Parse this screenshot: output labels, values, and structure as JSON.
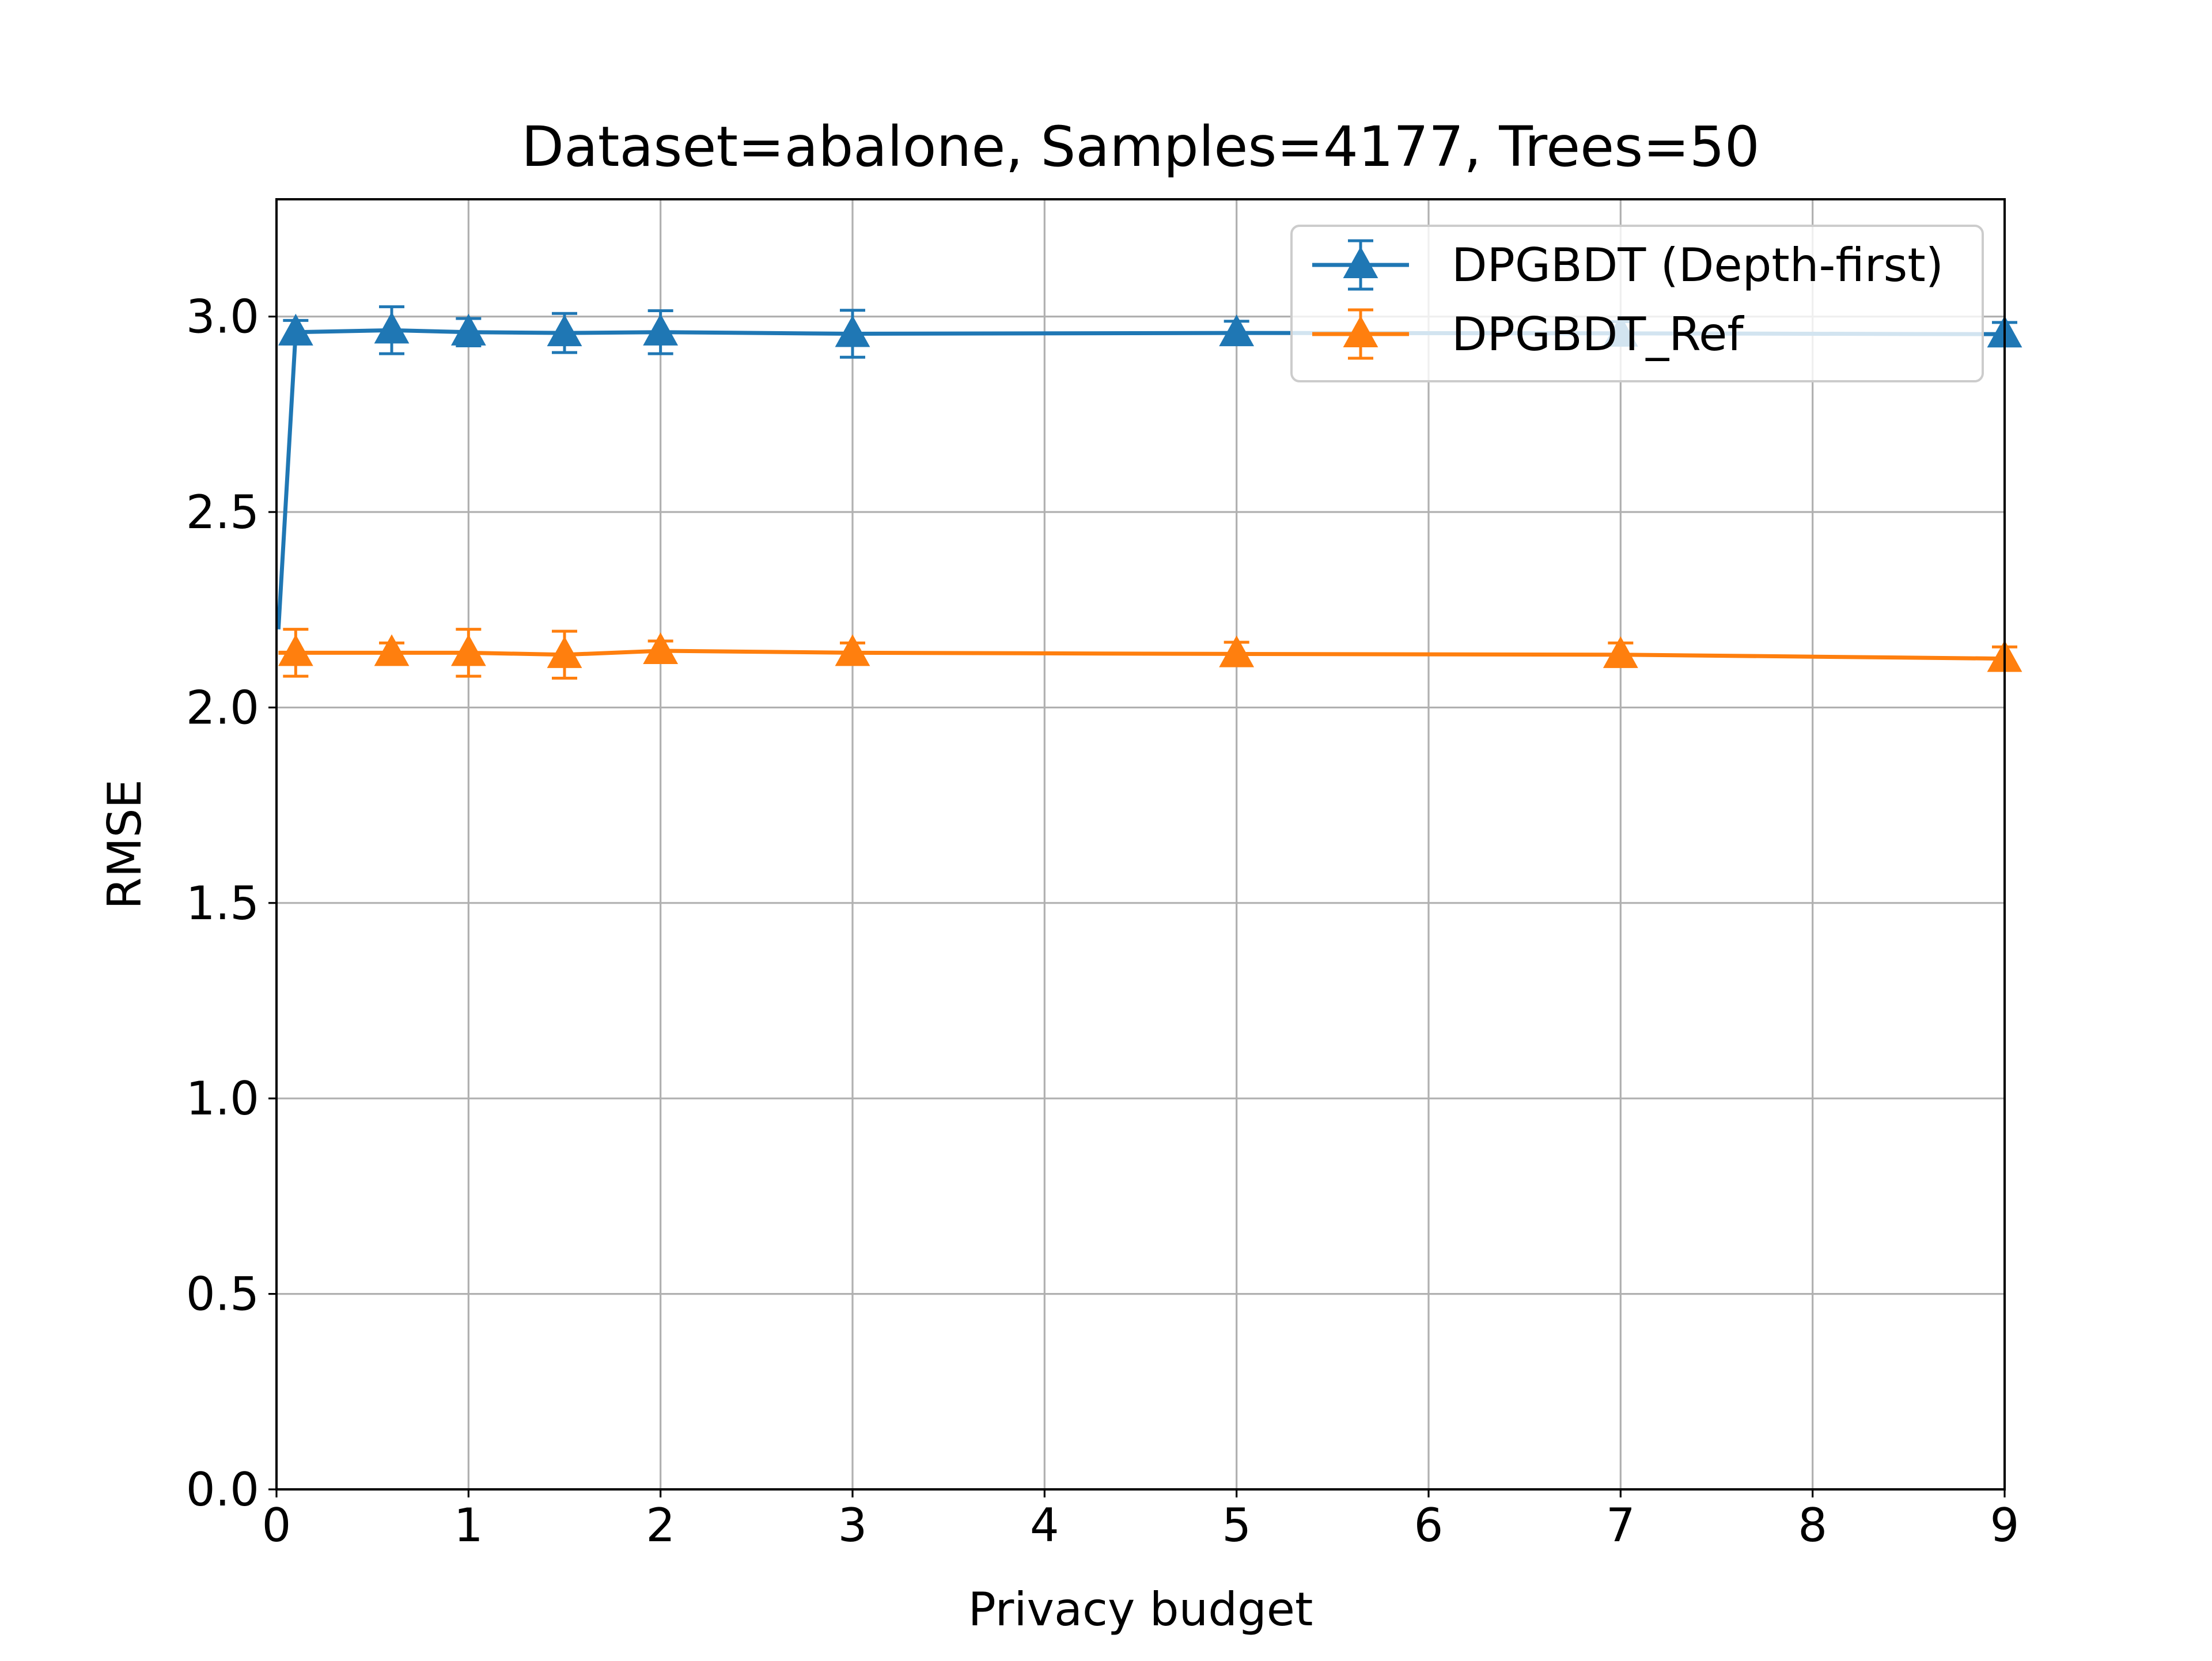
{
  "chart_data": {
    "type": "line",
    "title": "Dataset=abalone, Samples=4177, Trees=50",
    "xlabel": "Privacy budget",
    "ylabel": "RMSE",
    "xlim": [
      0,
      9
    ],
    "ylim": [
      0,
      3.3
    ],
    "xticks": [
      "0",
      "1",
      "2",
      "3",
      "4",
      "5",
      "6",
      "7",
      "8",
      "9"
    ],
    "yticks": [
      "0.0",
      "0.5",
      "1.0",
      "1.5",
      "2.0",
      "2.5",
      "3.0"
    ],
    "grid": true,
    "legend_position": "top-right",
    "marker": "triangle-up",
    "series": [
      {
        "name": "DPGBDT (Depth-first)",
        "color": "#1f77b4",
        "x": [
          0.01,
          0.1,
          0.6,
          1,
          1.5,
          2,
          3,
          5,
          7,
          9
        ],
        "y": [
          2.2,
          2.96,
          2.965,
          2.96,
          2.958,
          2.96,
          2.956,
          2.958,
          2.957,
          2.955
        ],
        "err": [
          0.0,
          0.03,
          0.06,
          0.035,
          0.05,
          0.055,
          0.06,
          0.03,
          0.03,
          0.03
        ]
      },
      {
        "name": "DPGBDT_Ref",
        "color": "#ff7f0e",
        "x": [
          0.01,
          0.1,
          0.6,
          1,
          1.5,
          2,
          3,
          5,
          7,
          9
        ],
        "y": [
          2.14,
          2.14,
          2.14,
          2.14,
          2.135,
          2.145,
          2.14,
          2.137,
          2.135,
          2.125
        ],
        "err": [
          0.0,
          0.06,
          0.025,
          0.06,
          0.06,
          0.025,
          0.025,
          0.03,
          0.03,
          0.03
        ]
      }
    ]
  }
}
